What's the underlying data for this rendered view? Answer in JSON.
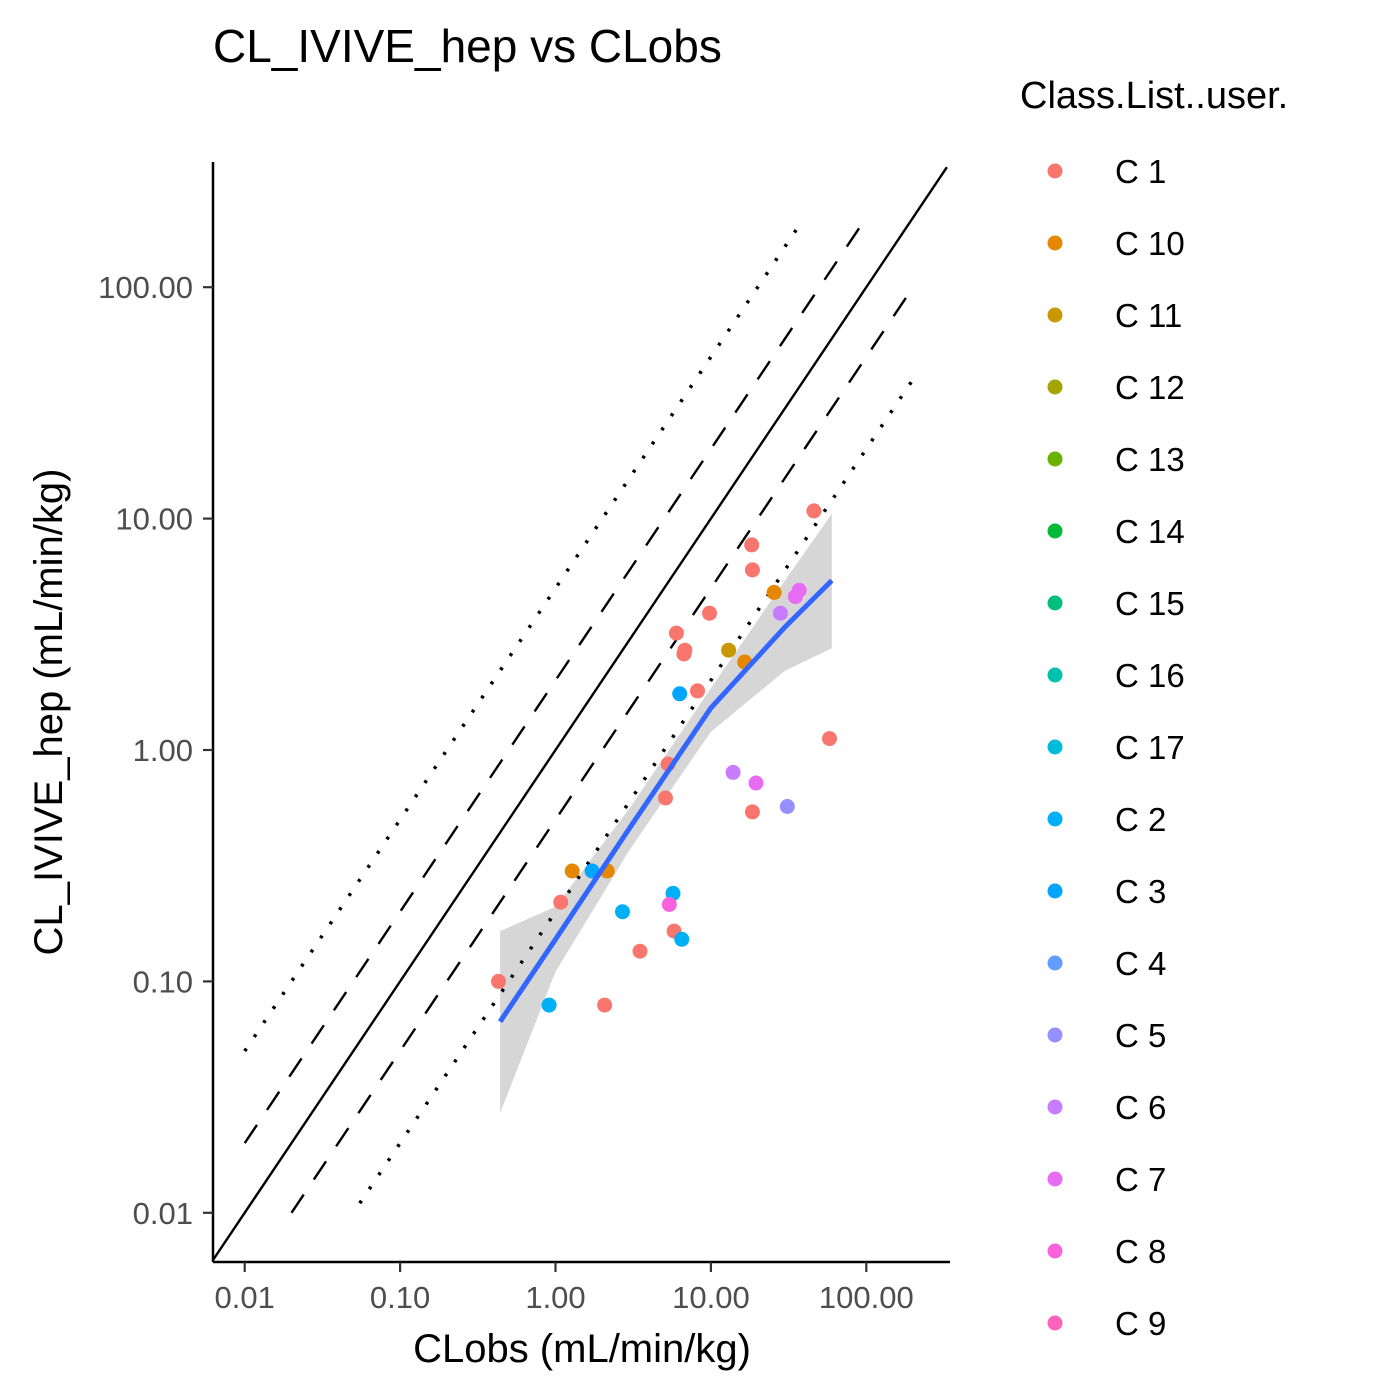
{
  "chart_data": {
    "type": "scatter",
    "title": "CL_IVIVE_hep vs CLobs",
    "xlabel": "CLobs (mL/min/kg)",
    "ylabel": "CL_IVIVE_hep (mL/min/kg)",
    "x_scale": "log10",
    "y_scale": "log10",
    "xlim": [
      0.006,
      330
    ],
    "ylim": [
      0.006,
      330
    ],
    "x_ticks": [
      0.01,
      0.1,
      1,
      10,
      100
    ],
    "x_tick_labels": [
      "0.01",
      "0.10",
      "1.00",
      "10.00",
      "100.00"
    ],
    "y_ticks": [
      0.01,
      0.1,
      1,
      10,
      100
    ],
    "y_tick_labels": [
      "0.01",
      "0.10",
      "1.00",
      "10.00",
      "100.00"
    ],
    "grid": false,
    "legend_title": "Class.List..user.",
    "legend_position": "right",
    "reference_lines": [
      {
        "name": "unity",
        "style": "solid",
        "x": [
          0.006,
          330
        ],
        "y": [
          0.006,
          330
        ]
      },
      {
        "name": "2-fold above",
        "style": "dashed",
        "x": [
          0.01,
          100
        ],
        "y": [
          0.02,
          200
        ]
      },
      {
        "name": "2-fold below",
        "style": "dashed",
        "x": [
          0.02,
          200
        ],
        "y": [
          0.01,
          100
        ]
      },
      {
        "name": "5-fold above",
        "style": "dotted",
        "x": [
          0.01,
          36
        ],
        "y": [
          0.05,
          180
        ]
      },
      {
        "name": "5-fold below",
        "style": "dotted",
        "x": [
          0.055,
          200
        ],
        "y": [
          0.011,
          40
        ]
      }
    ],
    "fit": {
      "method": "lm",
      "color": "#3366FF",
      "x": [
        0.44,
        1,
        3,
        10,
        30,
        60
      ],
      "y": [
        0.067,
        0.152,
        0.46,
        1.52,
        3.4,
        5.4
      ],
      "ci_lower": [
        0.027,
        0.11,
        0.37,
        1.2,
        2.2,
        2.75
      ],
      "ci_upper": [
        0.165,
        0.21,
        0.56,
        1.85,
        5.4,
        10.5
      ]
    },
    "series": [
      {
        "name": "C 1",
        "color": "#F8766D",
        "points": [
          [
            0.43,
            0.1
          ],
          [
            1.08,
            0.22
          ],
          [
            2.07,
            0.079
          ],
          [
            3.5,
            0.135
          ],
          [
            5.1,
            0.62
          ],
          [
            5.3,
            0.87
          ],
          [
            5.8,
            0.165
          ],
          [
            6.0,
            3.2
          ],
          [
            6.7,
            2.6
          ],
          [
            6.8,
            2.7
          ],
          [
            8.2,
            1.8
          ],
          [
            9.8,
            3.9
          ],
          [
            18.3,
            7.7
          ],
          [
            18.5,
            6.0
          ],
          [
            18.5,
            0.54
          ],
          [
            46,
            10.8
          ],
          [
            58,
            1.12
          ]
        ]
      },
      {
        "name": "C 10",
        "color": "#E58700",
        "points": [
          [
            1.28,
            0.3
          ],
          [
            2.15,
            0.3
          ],
          [
            16.5,
            2.4
          ],
          [
            25.5,
            4.8
          ]
        ]
      },
      {
        "name": "C 11",
        "color": "#C99800",
        "points": [
          [
            13.0,
            2.7
          ]
        ]
      },
      {
        "name": "C 12",
        "color": "#A3A500",
        "points": []
      },
      {
        "name": "C 13",
        "color": "#6BB100",
        "points": []
      },
      {
        "name": "C 14",
        "color": "#00BA38",
        "points": []
      },
      {
        "name": "C 15",
        "color": "#00BF7D",
        "points": []
      },
      {
        "name": "C 16",
        "color": "#00C0AF",
        "points": []
      },
      {
        "name": "C 17",
        "color": "#00BCD8",
        "points": []
      },
      {
        "name": "C 2",
        "color": "#00B0F6",
        "points": [
          [
            0.91,
            0.079
          ],
          [
            2.7,
            0.2
          ],
          [
            5.7,
            0.24
          ],
          [
            6.5,
            0.152
          ]
        ]
      },
      {
        "name": "C 3",
        "color": "#00A5FF",
        "points": [
          [
            1.72,
            0.3
          ],
          [
            6.3,
            1.75
          ]
        ]
      },
      {
        "name": "C 4",
        "color": "#619CFF",
        "points": []
      },
      {
        "name": "C 5",
        "color": "#9590FF",
        "points": [
          [
            31,
            0.57
          ]
        ]
      },
      {
        "name": "C 6",
        "color": "#C77CFF",
        "points": [
          [
            13.9,
            0.8
          ],
          [
            28,
            3.9
          ]
        ]
      },
      {
        "name": "C 7",
        "color": "#E76BF3",
        "points": [
          [
            19.5,
            0.72
          ],
          [
            35,
            4.6
          ],
          [
            37,
            4.9
          ]
        ]
      },
      {
        "name": "C 8",
        "color": "#FA62DB",
        "points": [
          [
            5.4,
            0.215
          ]
        ]
      },
      {
        "name": "C 9",
        "color": "#FF62BC",
        "points": []
      }
    ]
  }
}
